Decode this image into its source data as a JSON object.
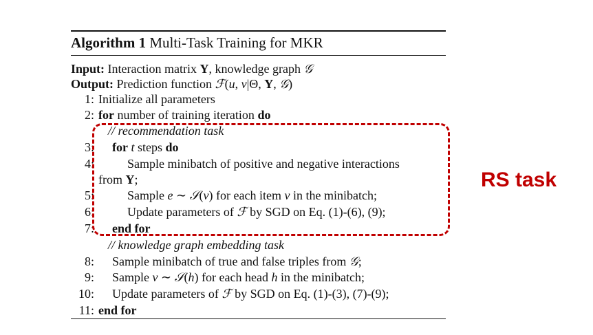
{
  "algorithm": {
    "title_label": "Algorithm 1",
    "title_text": "Multi-Task Training for MKR",
    "input_label": "Input:",
    "input_text_1": "Interaction matrix",
    "input_Y": "Y",
    "input_text_2": ", knowledge graph",
    "input_G": "𝒢",
    "output_label": "Output:",
    "output_text": "Prediction function",
    "output_F": "ℱ",
    "output_args_open": "(",
    "output_u": "u",
    "output_comma": ", ",
    "output_v": "v",
    "output_bar": "|Θ, ",
    "output_Y": "Y",
    "output_comma2": ", ",
    "output_G": "𝒢",
    "output_close": ")",
    "lines": {
      "l1_num": "1:",
      "l1_text": "Initialize all parameters",
      "l2_num": "2:",
      "l2_kw_for": "for",
      "l2_text": " number of training iteration ",
      "l2_kw_do": "do",
      "comment_rec": "// recommendation task",
      "l3_num": "3:",
      "l3_kw_for": "for",
      "l3_t": "t",
      "l3_text": " steps ",
      "l3_kw_do": "do",
      "l4_num": "4:",
      "l4_text": "Sample minibatch of positive and negative interactions",
      "l4_cont": "from",
      "l4_Y": "Y",
      "l4_colon": ";",
      "l5_num": "5:",
      "l5_text1": "Sample",
      "l5_e": "e",
      "l5_sim": " ∼ ",
      "l5_S": "𝒮",
      "l5_open": "(",
      "l5_v": "v",
      "l5_close": ")",
      "l5_text2": " for each item ",
      "l5_v2": "v",
      "l5_text3": " in the minibatch;",
      "l6_num": "6:",
      "l6_text1": "Update parameters of",
      "l6_F": "ℱ",
      "l6_text2": " by SGD on Eq. (1)-(6), (9);",
      "l7_num": "7:",
      "l7_text": "end for",
      "comment_kge": "// knowledge graph embedding task",
      "l8_num": "8:",
      "l8_text1": "Sample minibatch of true and false triples from",
      "l8_G": "𝒢",
      "l8_end": ";",
      "l9_num": "9:",
      "l9_text1": "Sample",
      "l9_v": "v",
      "l9_sim": " ∼ ",
      "l9_S": "𝒮",
      "l9_open": "(",
      "l9_h": "h",
      "l9_close": ")",
      "l9_text2": " for each head ",
      "l9_h2": "h",
      "l9_text3": " in the minibatch;",
      "l10_num": "10:",
      "l10_text1": "Update parameters of",
      "l10_F": "ℱ",
      "l10_text2": " by SGD on Eq. (1)-(3), (7)-(9);",
      "l11_num": "11:",
      "l11_text": "end for"
    }
  },
  "annotation": {
    "label": "RS task",
    "color": "#c00000"
  }
}
